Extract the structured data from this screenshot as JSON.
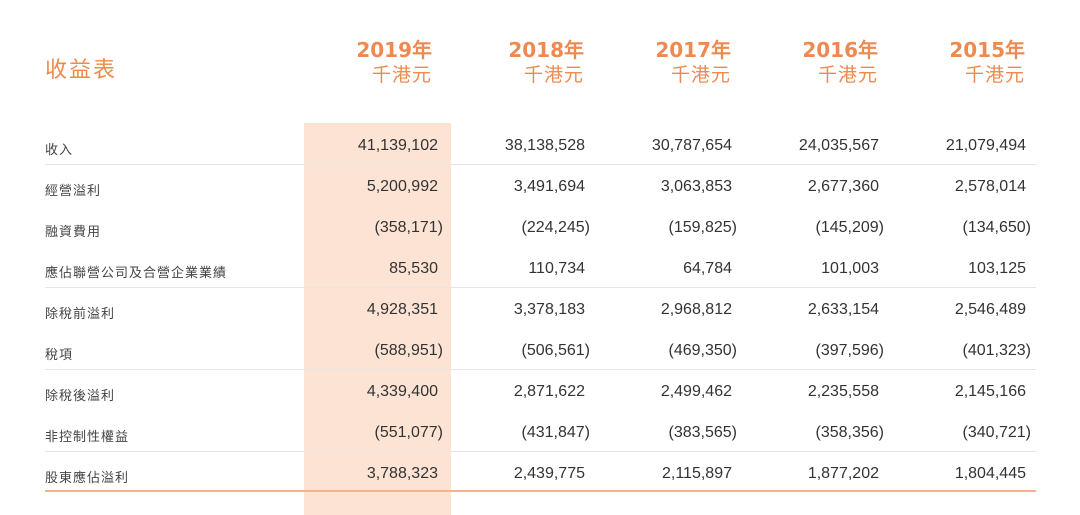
{
  "title": "收益表",
  "years": [
    {
      "year": "2019年",
      "unit": "千港元"
    },
    {
      "year": "2018年",
      "unit": "千港元"
    },
    {
      "year": "2017年",
      "unit": "千港元"
    },
    {
      "year": "2016年",
      "unit": "千港元"
    },
    {
      "year": "2015年",
      "unit": "千港元"
    }
  ],
  "rows": [
    {
      "label": "收入",
      "values": [
        "41,139,102",
        "38,138,528",
        "30,787,654",
        "24,035,567",
        "21,079,494"
      ]
    },
    {
      "label": "經營溢利",
      "values": [
        "5,200,992",
        "3,491,694",
        "3,063,853",
        "2,677,360",
        "2,578,014"
      ]
    },
    {
      "label": "融資費用",
      "values": [
        "(358,171)",
        "(224,245)",
        "(159,825)",
        "(145,209)",
        "(134,650)"
      ]
    },
    {
      "label": "應佔聯營公司及合營企業業績",
      "values": [
        "85,530",
        "110,734",
        "64,784",
        "101,003",
        "103,125"
      ]
    },
    {
      "label": "除稅前溢利",
      "values": [
        "4,928,351",
        "3,378,183",
        "2,968,812",
        "2,633,154",
        "2,546,489"
      ]
    },
    {
      "label": "稅項",
      "values": [
        "(588,951)",
        "(506,561)",
        "(469,350)",
        "(397,596)",
        "(401,323)"
      ]
    },
    {
      "label": "除稅後溢利",
      "values": [
        "4,339,400",
        "2,871,622",
        "2,499,462",
        "2,235,558",
        "2,145,166"
      ]
    },
    {
      "label": "非控制性權益",
      "values": [
        "(551,077)",
        "(431,847)",
        "(383,565)",
        "(358,356)",
        "(340,721)"
      ]
    },
    {
      "label": "股東應佔溢利",
      "values": [
        "3,788,323",
        "2,439,775",
        "2,115,897",
        "1,877,202",
        "1,804,445"
      ]
    }
  ]
}
